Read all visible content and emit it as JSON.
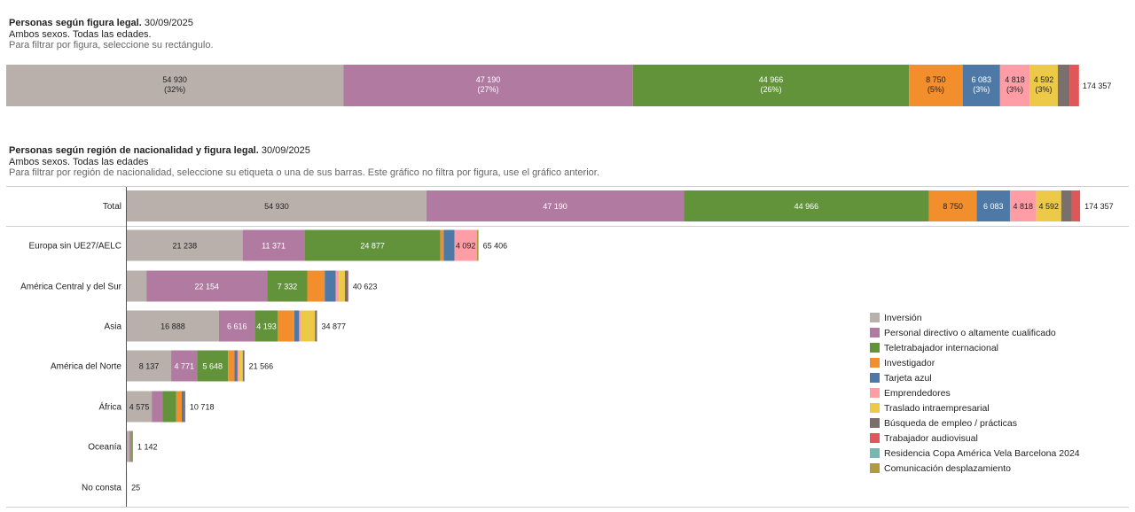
{
  "header1": {
    "title": "Personas según figura legal.",
    "date": "30/09/2025",
    "subtitle": "Ambos sexos. Todas las edades.",
    "note": "Para filtrar por figura, seleccione su rectángulo."
  },
  "header2": {
    "title": "Personas según región de nacionalidad y figura legal.",
    "date": "30/09/2025",
    "subtitle": "Ambos sexos. Todas las edades",
    "note": "Para filtrar por región de nacionalidad, seleccione su etiqueta o una de sus barras. Este gráfico no filtra por figura, use el gráfico anterior."
  },
  "chart_data": [
    {
      "type": "bar",
      "orientation": "horizontal-stacked",
      "title": "Personas según figura legal. 30/09/2025",
      "categories": [
        "Total"
      ],
      "total_label": "174 357",
      "segments": [
        {
          "name": "Inversión",
          "value": 54930,
          "label": "54 930",
          "pct_label": "(32%)",
          "color": "#bab0ab"
        },
        {
          "name": "Personal directivo o altamente cualificado",
          "value": 47190,
          "label": "47 190",
          "pct_label": "(27%)",
          "color": "#b07aa1"
        },
        {
          "name": "Teletrabajador internacional",
          "value": 44966,
          "label": "44 966",
          "pct_label": "(26%)",
          "color": "#62933b"
        },
        {
          "name": "Investigador",
          "value": 8750,
          "label": "8 750",
          "pct_label": "(5%)",
          "color": "#f28e2b"
        },
        {
          "name": "Tarjeta azul",
          "value": 6083,
          "label": "6 083",
          "pct_label": "(3%)",
          "color": "#4e79a7"
        },
        {
          "name": "Emprendedores",
          "value": 4818,
          "label": "4 818",
          "pct_label": "(3%)",
          "color": "#ff9da7"
        },
        {
          "name": "Traslado intraempresarial",
          "value": 4592,
          "label": "4 592",
          "pct_label": "(3%)",
          "color": "#edc948"
        },
        {
          "name": "Búsqueda de empleo / prácticas",
          "value": 1900,
          "label": "",
          "pct_label": "",
          "color": "#79706e"
        },
        {
          "name": "Trabajador audiovisual",
          "value": 1550,
          "label": "",
          "pct_label": "",
          "color": "#e15759"
        }
      ]
    },
    {
      "type": "bar",
      "orientation": "horizontal-stacked",
      "title": "Personas según región de nacionalidad y figura legal. 30/09/2025",
      "series_names": [
        "Inversión",
        "Personal directivo o altamente cualificado",
        "Teletrabajador internacional",
        "Investigador",
        "Tarjeta azul",
        "Emprendedores",
        "Traslado intraempresarial",
        "Búsqueda de empleo / prácticas",
        "Trabajador audiovisual",
        "Residencia Copa América Vela Barcelona 2024",
        "Comunicación desplazamiento"
      ],
      "total_row": {
        "category": "Total",
        "total_label": "174 357",
        "values": [
          54930,
          47190,
          44966,
          8750,
          6083,
          4818,
          4592,
          1900,
          1550,
          0,
          0
        ],
        "labels": [
          "54 930",
          "47 190",
          "44 966",
          "8 750",
          "6 083",
          "4 818",
          "4 592",
          "",
          "",
          "",
          ""
        ]
      },
      "rows": [
        {
          "category": "Europa sin UE27/AELC",
          "total_label": "65 406",
          "values": [
            21238,
            11371,
            24877,
            600,
            2000,
            4092,
            0,
            0,
            0,
            0,
            300
          ],
          "labels": [
            "21 238",
            "11 371",
            "24 877",
            "",
            "",
            "4 092",
            "",
            "",
            "",
            "",
            ""
          ]
        },
        {
          "category": "América Central y del Sur",
          "total_label": "40 623",
          "values": [
            3600,
            22154,
            7332,
            3200,
            2000,
            600,
            1100,
            600,
            37,
            0,
            0
          ],
          "labels": [
            "",
            "22 154",
            "7 332",
            "",
            "",
            "",
            "",
            "",
            "",
            "",
            ""
          ]
        },
        {
          "category": "Asia",
          "total_label": "34 877",
          "values": [
            16888,
            6616,
            4193,
            3000,
            900,
            300,
            2600,
            380,
            0,
            0,
            0
          ],
          "labels": [
            "16 888",
            "6 616",
            "4 193",
            "",
            "",
            "",
            "",
            "",
            "",
            "",
            ""
          ]
        },
        {
          "category": "América del Norte",
          "total_label": "21 566",
          "values": [
            8137,
            4771,
            5648,
            1200,
            550,
            300,
            650,
            310,
            0,
            0,
            0
          ],
          "labels": [
            "8 137",
            "4 771",
            "5 648",
            "",
            "",
            "",
            "",
            "",
            "",
            "",
            ""
          ]
        },
        {
          "category": "África",
          "total_label": "10 718",
          "values": [
            4575,
            2000,
            2500,
            1000,
            400,
            0,
            0,
            243,
            0,
            0,
            0
          ],
          "labels": [
            "4 575",
            "",
            "",
            "",
            "",
            "",
            "",
            "",
            "",
            "",
            ""
          ]
        },
        {
          "category": "Oceanía",
          "total_label": "1 142",
          "values": [
            500,
            300,
            150,
            0,
            0,
            0,
            0,
            0,
            0,
            0,
            192
          ],
          "labels": [
            "",
            "",
            "",
            "",
            "",
            "",
            "",
            "",
            "",
            "",
            ""
          ]
        },
        {
          "category": "No consta",
          "total_label": "25",
          "values": [
            25,
            0,
            0,
            0,
            0,
            0,
            0,
            0,
            0,
            0,
            0
          ],
          "labels": [
            "",
            "",
            "",
            "",
            "",
            "",
            "",
            "",
            "",
            "",
            ""
          ]
        }
      ]
    }
  ],
  "legend": [
    {
      "name": "Inversión",
      "color": "#bab0ab"
    },
    {
      "name": "Personal directivo o altamente cualificado",
      "color": "#b07aa1"
    },
    {
      "name": "Teletrabajador internacional",
      "color": "#62933b"
    },
    {
      "name": "Investigador",
      "color": "#f28e2b"
    },
    {
      "name": "Tarjeta azul",
      "color": "#4e79a7"
    },
    {
      "name": "Emprendedores",
      "color": "#ff9da7"
    },
    {
      "name": "Traslado intraempresarial",
      "color": "#edc948"
    },
    {
      "name": "Búsqueda de empleo / prácticas",
      "color": "#79706e"
    },
    {
      "name": "Trabajador audiovisual",
      "color": "#e15759"
    },
    {
      "name": "Residencia Copa América Vela Barcelona 2024",
      "color": "#76b7b2"
    },
    {
      "name": "Comunicación desplazamiento",
      "color": "#b09a3c"
    }
  ]
}
